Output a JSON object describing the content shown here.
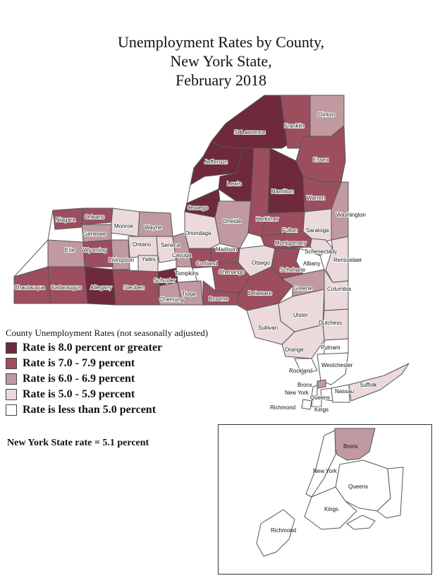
{
  "title": {
    "line1": "Unemployment Rates by County,",
    "line2": "New York State,",
    "line3": "February 2018"
  },
  "colors": {
    "cat1": "#6e2a3b",
    "cat2": "#9c4e5f",
    "cat3": "#c09aa0",
    "cat4": "#ebd9db",
    "cat5": "#ffffff"
  },
  "legend": {
    "title": "County Unemployment Rates (not seasonally adjusted)",
    "items": [
      {
        "label": "Rate is 8.0 percent or greater",
        "category": "cat1"
      },
      {
        "label": "Rate is 7.0 - 7.9 percent",
        "category": "cat2"
      },
      {
        "label": "Rate is 6.0 - 6.9 percent",
        "category": "cat3"
      },
      {
        "label": "Rate is 5.0 - 5.9 percent",
        "category": "cat4"
      },
      {
        "label": "Rate is less than 5.0 percent",
        "category": "cat5"
      }
    ]
  },
  "state_rate": "New York State rate = 5.1 percent",
  "counties": [
    {
      "name": "St Lawrence",
      "category": "cat1"
    },
    {
      "name": "Franklin",
      "category": "cat2"
    },
    {
      "name": "Clinton",
      "category": "cat3"
    },
    {
      "name": "Essex",
      "category": "cat2"
    },
    {
      "name": "Jefferson",
      "category": "cat1"
    },
    {
      "name": "Lewis",
      "category": "cat1"
    },
    {
      "name": "Hamilton",
      "category": "cat1"
    },
    {
      "name": "Warren",
      "category": "cat2"
    },
    {
      "name": "Washington",
      "category": "cat3"
    },
    {
      "name": "Oswego",
      "category": "cat1"
    },
    {
      "name": "Herkimer",
      "category": "cat2"
    },
    {
      "name": "Oneida",
      "category": "cat3"
    },
    {
      "name": "Niagara",
      "category": "cat2"
    },
    {
      "name": "Orleans",
      "category": "cat2"
    },
    {
      "name": "Monroe",
      "category": "cat4"
    },
    {
      "name": "Wayne",
      "category": "cat3"
    },
    {
      "name": "Genesee",
      "category": "cat3"
    },
    {
      "name": "Onondaga",
      "category": "cat4"
    },
    {
      "name": "Fulton",
      "category": "cat2"
    },
    {
      "name": "Saratoga",
      "category": "cat4"
    },
    {
      "name": "Erie",
      "category": "cat3"
    },
    {
      "name": "Wyoming",
      "category": "cat2"
    },
    {
      "name": "Ontario",
      "category": "cat4"
    },
    {
      "name": "Seneca",
      "category": "cat4"
    },
    {
      "name": "Montgomery",
      "category": "cat2"
    },
    {
      "name": "Livingston",
      "category": "cat3"
    },
    {
      "name": "Yates",
      "category": "cat4"
    },
    {
      "name": "Cayuga",
      "category": "cat3"
    },
    {
      "name": "Madison",
      "category": "cat2"
    },
    {
      "name": "Schenectady",
      "category": "cat4"
    },
    {
      "name": "Albany",
      "category": "cat5"
    },
    {
      "name": "Rensselaer",
      "category": "cat4"
    },
    {
      "name": "Cortland",
      "category": "cat2"
    },
    {
      "name": "Otsego",
      "category": "cat4"
    },
    {
      "name": "Chenango",
      "category": "cat2"
    },
    {
      "name": "Schoharie",
      "category": "cat2"
    },
    {
      "name": "Tompkins",
      "category": "cat5"
    },
    {
      "name": "Chautauqua",
      "category": "cat2"
    },
    {
      "name": "Cattaraugus",
      "category": "cat2"
    },
    {
      "name": "Allegany",
      "category": "cat1"
    },
    {
      "name": "Steuben",
      "category": "cat2"
    },
    {
      "name": "Schuyler",
      "category": "cat1"
    },
    {
      "name": "Chemung",
      "category": "cat3"
    },
    {
      "name": "Tioga",
      "category": "cat3"
    },
    {
      "name": "Broome",
      "category": "cat2"
    },
    {
      "name": "Delaware",
      "category": "cat2"
    },
    {
      "name": "Greene",
      "category": "cat3"
    },
    {
      "name": "Columbia",
      "category": "cat4"
    },
    {
      "name": "Ulster",
      "category": "cat4"
    },
    {
      "name": "Sullivan",
      "category": "cat4"
    },
    {
      "name": "Dutchess",
      "category": "cat4"
    },
    {
      "name": "Orange",
      "category": "cat4"
    },
    {
      "name": "Putnam",
      "category": "cat5"
    },
    {
      "name": "Rockland",
      "category": "cat5"
    },
    {
      "name": "Westchester",
      "category": "cat5"
    },
    {
      "name": "Bronx",
      "category": "cat3"
    },
    {
      "name": "New York",
      "category": "cat5"
    },
    {
      "name": "Queens",
      "category": "cat5"
    },
    {
      "name": "Kings",
      "category": "cat5"
    },
    {
      "name": "Richmond",
      "category": "cat5"
    },
    {
      "name": "Nassau",
      "category": "cat5"
    },
    {
      "name": "Suffolk",
      "category": "cat4"
    }
  ],
  "inset": {
    "labels": [
      "Bronx",
      "New York",
      "Queens",
      "Kings",
      "Richmond"
    ]
  }
}
